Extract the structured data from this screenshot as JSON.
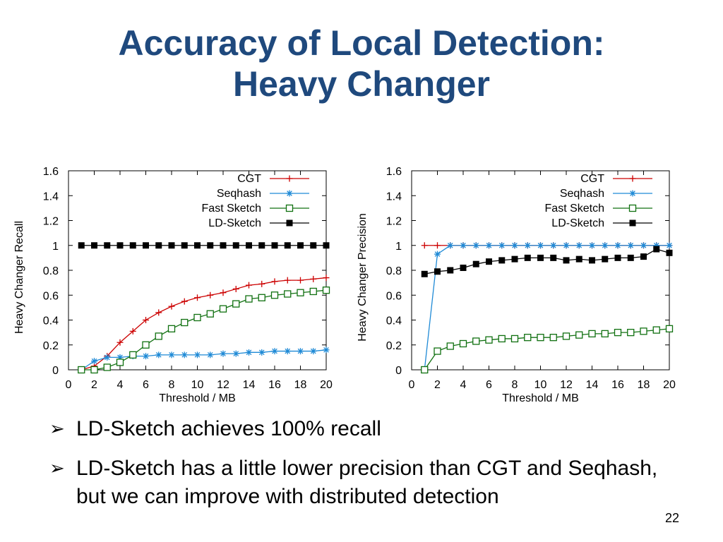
{
  "slide": {
    "title_line1": "Accuracy of Local Detection:",
    "title_line2": "Heavy Changer",
    "bullets": [
      "LD-Sketch achieves 100% recall",
      "LD-Sketch has a little lower precision than CGT and Seqhash, but we can improve with distributed detection"
    ],
    "page_number": "22",
    "bullet_icon": "arrow-bullet-icon"
  },
  "chart_data": [
    {
      "type": "line",
      "title": "",
      "xlabel": "Threshold / MB",
      "ylabel": "Heavy Changer Recall",
      "xlim": [
        0,
        20
      ],
      "ylim": [
        0,
        1.6
      ],
      "xticks": [
        "0",
        "2",
        "4",
        "6",
        "8",
        "10",
        "12",
        "14",
        "16",
        "18",
        "20"
      ],
      "yticks": [
        "0",
        "0.2",
        "0.4",
        "0.6",
        "0.8",
        "1",
        "1.2",
        "1.4",
        "1.6"
      ],
      "legend_position": "top-right",
      "x": [
        1,
        2,
        3,
        4,
        5,
        6,
        7,
        8,
        9,
        10,
        11,
        12,
        13,
        14,
        15,
        16,
        17,
        18,
        19,
        20
      ],
      "series": [
        {
          "name": "CGT",
          "color": "#cc0000",
          "marker": "plus",
          "values": [
            0,
            0.03,
            0.11,
            0.22,
            0.31,
            0.4,
            0.46,
            0.51,
            0.55,
            0.58,
            0.6,
            0.62,
            0.65,
            0.68,
            0.69,
            0.71,
            0.72,
            0.72,
            0.73,
            0.74
          ]
        },
        {
          "name": "Seqhash",
          "color": "#1f8ad6",
          "marker": "star",
          "values": [
            0,
            0.07,
            0.1,
            0.1,
            0.11,
            0.11,
            0.12,
            0.12,
            0.12,
            0.12,
            0.12,
            0.13,
            0.13,
            0.14,
            0.14,
            0.15,
            0.15,
            0.15,
            0.15,
            0.16
          ]
        },
        {
          "name": "Fast Sketch",
          "color": "#107010",
          "marker": "square-open",
          "values": [
            0,
            0,
            0.02,
            0.06,
            0.12,
            0.2,
            0.27,
            0.33,
            0.38,
            0.42,
            0.45,
            0.49,
            0.53,
            0.57,
            0.58,
            0.6,
            0.61,
            0.62,
            0.63,
            0.64
          ]
        },
        {
          "name": "LD-Sketch",
          "color": "#000000",
          "marker": "square-filled",
          "values": [
            1,
            1,
            1,
            1,
            1,
            1,
            1,
            1,
            1,
            1,
            1,
            1,
            1,
            1,
            1,
            1,
            1,
            1,
            1,
            1
          ]
        }
      ]
    },
    {
      "type": "line",
      "title": "",
      "xlabel": "Threshold / MB",
      "ylabel": "Heavy Changer Precision",
      "xlim": [
        0,
        20
      ],
      "ylim": [
        0,
        1.6
      ],
      "xticks": [
        "0",
        "2",
        "4",
        "6",
        "8",
        "10",
        "12",
        "14",
        "16",
        "18",
        "20"
      ],
      "yticks": [
        "0",
        "0.2",
        "0.4",
        "0.6",
        "0.8",
        "1",
        "1.2",
        "1.4",
        "1.6"
      ],
      "legend_position": "top-right",
      "x": [
        1,
        2,
        3,
        4,
        5,
        6,
        7,
        8,
        9,
        10,
        11,
        12,
        13,
        14,
        15,
        16,
        17,
        18,
        19,
        20
      ],
      "series": [
        {
          "name": "CGT",
          "color": "#cc0000",
          "marker": "plus",
          "values": [
            1,
            1,
            1,
            1,
            1,
            1,
            1,
            1,
            1,
            1,
            1,
            1,
            1,
            1,
            1,
            1,
            1,
            1,
            1,
            1
          ]
        },
        {
          "name": "Seqhash",
          "color": "#1f8ad6",
          "marker": "star",
          "values": [
            0,
            0.93,
            1,
            1,
            1,
            1,
            1,
            1,
            1,
            1,
            1,
            1,
            1,
            1,
            1,
            1,
            1,
            1,
            1,
            1
          ]
        },
        {
          "name": "Fast Sketch",
          "color": "#107010",
          "marker": "square-open",
          "values": [
            0,
            0.15,
            0.19,
            0.21,
            0.23,
            0.24,
            0.25,
            0.25,
            0.26,
            0.26,
            0.26,
            0.27,
            0.28,
            0.29,
            0.29,
            0.3,
            0.3,
            0.31,
            0.32,
            0.33
          ]
        },
        {
          "name": "LD-Sketch",
          "color": "#000000",
          "marker": "square-filled",
          "values": [
            0.77,
            0.79,
            0.8,
            0.82,
            0.85,
            0.87,
            0.88,
            0.89,
            0.9,
            0.9,
            0.9,
            0.88,
            0.89,
            0.88,
            0.89,
            0.9,
            0.9,
            0.91,
            0.97,
            0.94
          ]
        }
      ]
    }
  ]
}
